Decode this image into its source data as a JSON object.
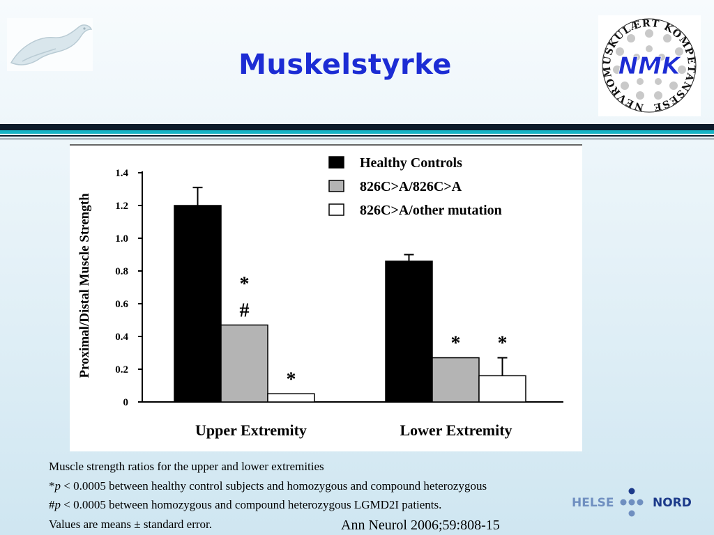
{
  "slide": {
    "title": "Muskelstyrke"
  },
  "logos": {
    "right_logo_ring_text": "NEVROMUSKULÆRT KOMPETANSESENTER",
    "right_logo_center_text": "NMK",
    "helse_left": "HELSE",
    "helse_right": "NORD"
  },
  "caption": {
    "line1": "Muscle strength ratios for the upper and lower extremities",
    "line2_mark": "*",
    "line2_p": "p",
    "line2_rest": " < 0.0005 between healthy control subjects and homozygous and compound heterozygous",
    "line3_mark": "#",
    "line3_p": "p",
    "line3_rest": " < 0.0005 between homozygous and compound heterozygous LGMD2I patients.",
    "line4": "Values are means ± standard error."
  },
  "citation": "Ann Neurol 2006;59:808-15",
  "colors": {
    "title": "#1c2cd4",
    "bar_dark": "#0d1b2a",
    "bar_teal": "#17b3c4",
    "series_healthy": "#000000",
    "series_homozygous": "#b4b4b4",
    "series_other": "#ffffff"
  },
  "chart_data": {
    "type": "bar",
    "categories": [
      "Upper Extremity",
      "Lower Extremity"
    ],
    "ylabel": "Proximal/Distal Muscle Strength",
    "xlabel": "",
    "ylim": [
      0,
      1.4
    ],
    "yticks": [
      "0",
      "0.2",
      "0.4",
      "0.6",
      "0.8",
      "1.0",
      "1.2",
      "1.4"
    ],
    "legend_position": "top-right",
    "series": [
      {
        "name": "Healthy Controls",
        "values": [
          1.2,
          0.86
        ],
        "errors": [
          0.11,
          0.04
        ]
      },
      {
        "name": "826C>A/826C>A",
        "values": [
          0.47,
          0.27
        ],
        "errors": [
          0,
          0
        ]
      },
      {
        "name": "826C>A/other mutation",
        "values": [
          0.05,
          0.16
        ],
        "errors": [
          0,
          0.11
        ]
      }
    ],
    "annotations": [
      {
        "category": "Upper Extremity",
        "series": "826C>A/826C>A",
        "text": "*"
      },
      {
        "category": "Upper Extremity",
        "series": "826C>A/826C>A",
        "text": "#"
      },
      {
        "category": "Upper Extremity",
        "series": "826C>A/other mutation",
        "text": "*"
      },
      {
        "category": "Lower Extremity",
        "series": "826C>A/826C>A",
        "text": "*"
      },
      {
        "category": "Lower Extremity",
        "series": "826C>A/other mutation",
        "text": "*"
      }
    ]
  }
}
